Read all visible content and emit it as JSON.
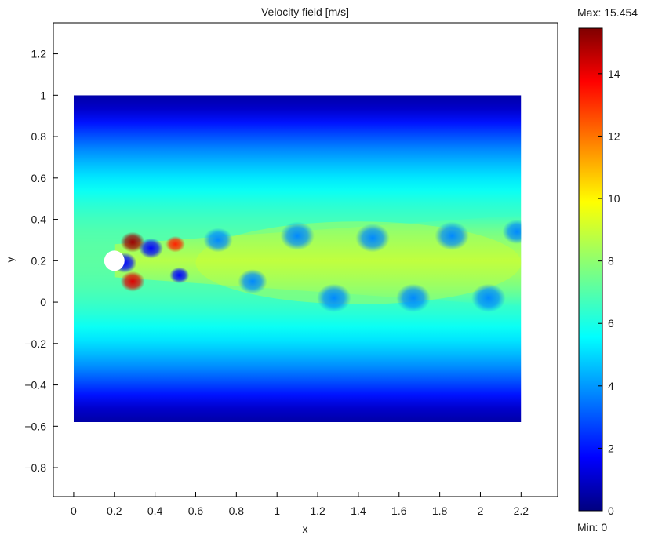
{
  "chart_data": {
    "type": "heatmap",
    "title": "Velocity field [m/s]",
    "xlabel": "x",
    "ylabel": "y",
    "xlim": [
      -0.1,
      2.38
    ],
    "ylim": [
      -0.94,
      1.35
    ],
    "x_ticks": [
      0,
      0.2,
      0.4,
      0.6,
      0.8,
      1,
      1.2,
      1.4,
      1.6,
      1.8,
      2,
      2.2
    ],
    "x_tick_labels": [
      "0",
      "0.2",
      "0.4",
      "0.6",
      "0.8",
      "1",
      "1.2",
      "1.4",
      "1.6",
      "1.8",
      "2",
      "2.2"
    ],
    "y_ticks": [
      -0.8,
      -0.6,
      -0.4,
      -0.2,
      0,
      0.2,
      0.4,
      0.6,
      0.8,
      1,
      1.2
    ],
    "y_tick_labels": [
      "−0.8",
      "−0.6",
      "−0.4",
      "−0.2",
      "0",
      "0.2",
      "0.4",
      "0.6",
      "0.8",
      "1",
      "1.2"
    ],
    "domain": {
      "x": [
        0,
        2.2
      ],
      "y": [
        -0.58,
        1.0
      ]
    },
    "obstacle": {
      "shape": "circle",
      "cx": 0.2,
      "cy": 0.2,
      "r": 0.05
    },
    "inflow_peak_velocity": 7.2,
    "wake_centerline_velocity": 9,
    "vortices": [
      {
        "x": 0.29,
        "y": 0.29,
        "value": 15,
        "size": 0.05
      },
      {
        "x": 0.29,
        "y": 0.1,
        "value": 14,
        "size": 0.05
      },
      {
        "x": 0.5,
        "y": 0.28,
        "value": 13,
        "size": 0.04
      },
      {
        "x": 0.25,
        "y": 0.19,
        "value": 2,
        "size": 0.05
      },
      {
        "x": 0.38,
        "y": 0.26,
        "value": 2,
        "size": 0.05
      },
      {
        "x": 0.52,
        "y": 0.13,
        "value": 2,
        "size": 0.04
      },
      {
        "x": 0.71,
        "y": 0.3,
        "value": 4,
        "size": 0.06
      },
      {
        "x": 0.88,
        "y": 0.1,
        "value": 4,
        "size": 0.06
      },
      {
        "x": 1.1,
        "y": 0.32,
        "value": 4,
        "size": 0.07
      },
      {
        "x": 1.28,
        "y": 0.02,
        "value": 4,
        "size": 0.07
      },
      {
        "x": 1.47,
        "y": 0.31,
        "value": 4,
        "size": 0.07
      },
      {
        "x": 1.67,
        "y": 0.02,
        "value": 4,
        "size": 0.07
      },
      {
        "x": 1.86,
        "y": 0.32,
        "value": 4,
        "size": 0.07
      },
      {
        "x": 2.04,
        "y": 0.02,
        "value": 4,
        "size": 0.07
      },
      {
        "x": 2.18,
        "y": 0.34,
        "value": 4,
        "size": 0.06
      }
    ],
    "colorbar": {
      "min": 0,
      "max": 15.454,
      "ticks": [
        0,
        2,
        4,
        6,
        8,
        10,
        12,
        14
      ],
      "tick_labels": [
        "0",
        "2",
        "4",
        "6",
        "8",
        "10",
        "12",
        "14"
      ],
      "max_label": "Max: 15.454",
      "min_label": "Min: 0",
      "colormap": "jet"
    },
    "grid": false
  }
}
